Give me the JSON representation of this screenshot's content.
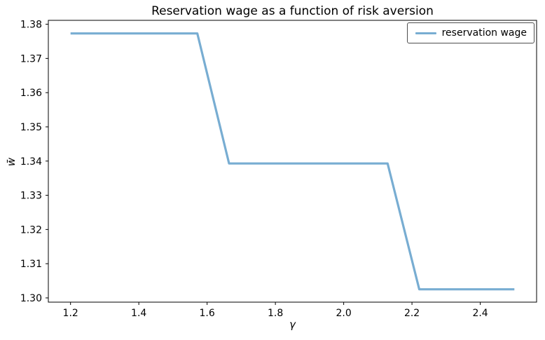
{
  "figure": {
    "title": "Reservation wage as a function of risk aversion",
    "xlabel": "γ",
    "ylabel": "w̄",
    "background_color": "#ffffff",
    "spine_color": "#000000"
  },
  "legend": {
    "label": "reservation wage",
    "position": "upper right",
    "line_color": "#78add2",
    "border_color": "#4d4d4d"
  },
  "chart_data": {
    "type": "line",
    "title": "Reservation wage as a function of risk aversion",
    "xlabel": "γ",
    "ylabel": "w̄",
    "series": [
      {
        "name": "reservation wage",
        "color": "#78add2",
        "line_width": 3.2,
        "x": [
          1.2,
          1.2929,
          1.3857,
          1.4786,
          1.5714,
          1.6643,
          1.7571,
          1.85,
          1.9429,
          2.0357,
          2.1286,
          2.2214,
          2.3143,
          2.4071,
          2.5
        ],
        "y": [
          1.3773,
          1.3773,
          1.3773,
          1.3773,
          1.3773,
          1.3393,
          1.3393,
          1.3393,
          1.3393,
          1.3393,
          1.3393,
          1.3025,
          1.3025,
          1.3025,
          1.3025
        ]
      }
    ],
    "xlim": [
      1.135,
      2.565
    ],
    "ylim": [
      1.29876,
      1.38114
    ],
    "xticks": [
      1.2,
      1.4,
      1.6,
      1.8,
      2.0,
      2.2,
      2.4
    ],
    "xtick_labels": [
      "1.2",
      "1.4",
      "1.6",
      "1.8",
      "2.0",
      "2.2",
      "2.4"
    ],
    "yticks": [
      1.3,
      1.31,
      1.32,
      1.33,
      1.34,
      1.35,
      1.36,
      1.37,
      1.38
    ],
    "ytick_labels": [
      "1.30",
      "1.31",
      "1.32",
      "1.33",
      "1.34",
      "1.35",
      "1.36",
      "1.37",
      "1.38"
    ],
    "grid": false,
    "legend_position": "upper right"
  }
}
